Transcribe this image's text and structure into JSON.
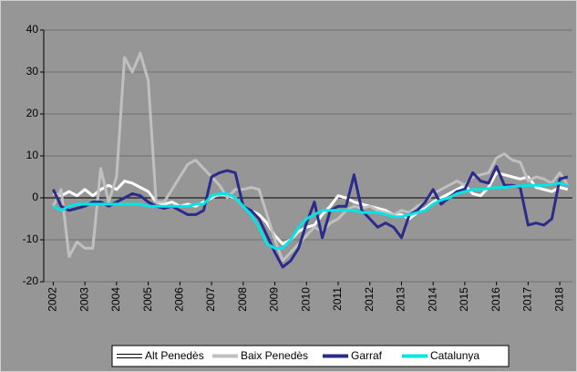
{
  "chart_data": {
    "type": "line",
    "x": [
      2002,
      2002.25,
      2002.5,
      2002.75,
      2003,
      2003.25,
      2003.5,
      2003.75,
      2004,
      2004.25,
      2004.5,
      2004.75,
      2005,
      2005.25,
      2005.5,
      2005.75,
      2006,
      2006.25,
      2006.5,
      2006.75,
      2007,
      2007.25,
      2007.5,
      2007.75,
      2008,
      2008.25,
      2008.5,
      2008.75,
      2009,
      2009.25,
      2009.5,
      2009.75,
      2010,
      2010.25,
      2010.5,
      2010.75,
      2011,
      2011.25,
      2011.5,
      2011.75,
      2012,
      2012.25,
      2012.5,
      2012.75,
      2013,
      2013.25,
      2013.5,
      2013.75,
      2014,
      2014.25,
      2014.5,
      2014.75,
      2015,
      2015.25,
      2015.5,
      2015.75,
      2016,
      2016.25,
      2016.5,
      2016.75,
      2017,
      2017.25,
      2017.5,
      2017.75,
      2018,
      2018.25
    ],
    "series": [
      {
        "name": "Alt Penedès",
        "color": "#ffffff",
        "values": [
          1,
          0.5,
          1.5,
          0.5,
          2,
          0.5,
          2,
          3,
          2,
          4,
          3.5,
          2.5,
          1.5,
          -1,
          -1.5,
          -1,
          -2,
          -1.5,
          -2,
          -1,
          0,
          1,
          0.5,
          0,
          -2,
          -3,
          -4,
          -6,
          -9,
          -11,
          -10,
          -8,
          -7,
          -6.5,
          -4,
          -2,
          0.5,
          0,
          -1,
          -1.5,
          -2,
          -2.5,
          -3,
          -4,
          -4,
          -5,
          -3.5,
          -2.5,
          -1,
          0,
          1,
          2,
          3,
          1,
          0.5,
          2.5,
          6,
          5.5,
          5,
          4.5,
          5,
          2.5,
          2,
          1.5,
          2.5,
          2
        ]
      },
      {
        "name": "Baix Penedès",
        "color": "#c0c0c0",
        "values": [
          -2,
          2,
          -14,
          -10.5,
          -12,
          -12,
          7,
          -1,
          5,
          33.5,
          30,
          34.5,
          28,
          -1,
          -1,
          2,
          5,
          8,
          9,
          7,
          5,
          3,
          0,
          2,
          2,
          2.5,
          2,
          -4,
          -10,
          -15,
          -13,
          -11,
          -9,
          -7,
          -8,
          -6,
          -5,
          -3,
          -2,
          -2.5,
          -2,
          -3,
          -3.5,
          -4,
          -3,
          -3.5,
          -2,
          -1,
          1,
          2,
          3,
          4,
          3,
          5,
          5.5,
          6,
          9.5,
          10.5,
          9,
          8.5,
          4,
          5,
          4.5,
          3.5,
          6,
          3
        ]
      },
      {
        "name": "Garraf",
        "color": "#2b2b8c",
        "values": [
          2,
          -2,
          -3,
          -2.5,
          -2,
          -1,
          -1,
          -2,
          -1,
          0,
          1,
          0.5,
          -1,
          -2,
          -2.5,
          -2,
          -3,
          -4,
          -4,
          -3,
          5,
          6,
          6.5,
          6,
          -2,
          -3,
          -5,
          -9,
          -13,
          -16.5,
          -15,
          -12,
          -6,
          -1,
          -9.5,
          -3,
          -2,
          -2,
          5.5,
          -3,
          -5,
          -7,
          -6,
          -7,
          -9.5,
          -4,
          -3,
          -1,
          2,
          -1.5,
          0,
          1.5,
          2,
          6,
          4,
          3.5,
          7.5,
          3,
          3,
          2.5,
          -6.5,
          -6,
          -6.5,
          -5,
          4.5,
          5
        ]
      },
      {
        "name": "Catalunya",
        "color": "#00e5e5",
        "values": [
          -2,
          -3,
          -2,
          -1.5,
          -1.5,
          -1.5,
          -1.5,
          -1.5,
          -1.5,
          -1.5,
          -1.5,
          -1.5,
          -2,
          -2,
          -2,
          -2,
          -2,
          -2,
          -1.5,
          -1.5,
          0.5,
          1,
          1,
          0,
          -2,
          -4,
          -7,
          -11,
          -12,
          -12,
          -10,
          -7,
          -5,
          -4,
          -3,
          -3,
          -3,
          -3,
          -3,
          -3.5,
          -3.5,
          -3.5,
          -4,
          -4.5,
          -4.5,
          -4,
          -3.5,
          -3,
          -1.5,
          -0.5,
          0,
          1,
          1.5,
          2,
          2,
          2.2,
          2.5,
          2.5,
          2.7,
          2.8,
          3,
          3,
          3,
          3.2,
          3.5,
          3
        ]
      }
    ],
    "xlim": [
      2001.7,
      2018.4
    ],
    "xticks": [
      2002,
      2003,
      2004,
      2005,
      2006,
      2007,
      2008,
      2009,
      2010,
      2011,
      2012,
      2013,
      2014,
      2015,
      2016,
      2017,
      2018
    ],
    "ylim": [
      -20,
      40
    ],
    "yticks": [
      -20,
      -10,
      0,
      10,
      20,
      30,
      40
    ],
    "grid": true,
    "legend": "bottom"
  }
}
